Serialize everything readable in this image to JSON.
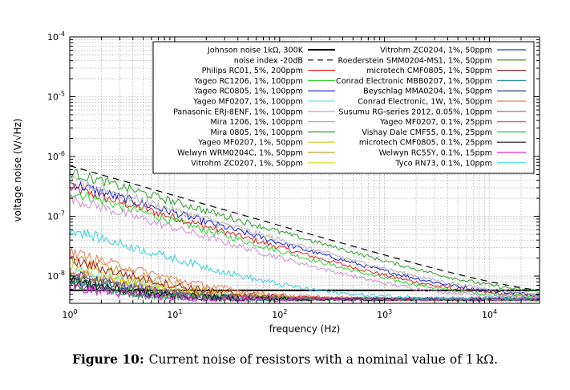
{
  "chart_data": {
    "type": "line",
    "xlabel": "frequency (Hz)",
    "ylabel": "voltage noise (V/√Hz)",
    "xscale": "log",
    "yscale": "log",
    "xlim": [
      1,
      30000
    ],
    "ylim": [
      3.5e-09,
      0.0001
    ],
    "grid": true,
    "legend": "top-right",
    "x_ticks": [
      {
        "value": 1,
        "mant": "10",
        "exp": "0"
      },
      {
        "value": 10,
        "mant": "10",
        "exp": "1"
      },
      {
        "value": 100,
        "mant": "10",
        "exp": "2"
      },
      {
        "value": 1000,
        "mant": "10",
        "exp": "3"
      },
      {
        "value": 10000,
        "mant": "10",
        "exp": "4"
      }
    ],
    "y_ticks": [
      {
        "value": 1e-08,
        "mant": "10",
        "exp": "-8"
      },
      {
        "value": 1e-07,
        "mant": "10",
        "exp": "-7"
      },
      {
        "value": 1e-06,
        "mant": "10",
        "exp": "-6"
      },
      {
        "value": 1e-05,
        "mant": "10",
        "exp": "-5"
      },
      {
        "value": 0.0001,
        "mant": "10",
        "exp": "-4"
      }
    ],
    "series": [
      {
        "name": "Johnson noise 1kΩ, 300K",
        "color": "#000000",
        "style": "bold",
        "y_at_1Hz": 4.07e-09,
        "slope": 0,
        "floor": 4.07e-09
      },
      {
        "name": "noise index -20dB",
        "color": "#000000",
        "style": "dashed",
        "y_at_1Hz": 7e-07,
        "slope": -0.5,
        "floor": 4.07e-09
      },
      {
        "name": "Philips RC01, 5%, 200ppm",
        "color": "#e0201f",
        "style": "solid",
        "y_at_1Hz": 3e-07,
        "slope": -0.5,
        "floor": 4.3e-09
      },
      {
        "name": "Yageo RC1206, 1%, 100ppm",
        "color": "#32d232",
        "style": "solid",
        "y_at_1Hz": 2.6e-07,
        "slope": -0.5,
        "floor": 4.3e-09
      },
      {
        "name": "Yageo RC0805, 1%, 100ppm",
        "color": "#1a1adc",
        "style": "solid",
        "y_at_1Hz": 3.6e-07,
        "slope": -0.5,
        "floor": 4.4e-09
      },
      {
        "name": "Yageo MF0207, 1%, 100ppm",
        "color": "#66e6e6",
        "style": "solid",
        "y_at_1Hz": 1.3e-08,
        "slope": -0.5,
        "floor": 4.1e-09
      },
      {
        "name": "Panasonic ERJ-8ENF, 1%, 100ppm",
        "color": "#d090d0",
        "style": "solid",
        "y_at_1Hz": 2e-07,
        "slope": -0.5,
        "floor": 4.3e-09
      },
      {
        "name": "Mira 1206, 1%, 100ppm",
        "color": "#b0b0b0",
        "style": "solid",
        "y_at_1Hz": 4e-07,
        "slope": -0.5,
        "floor": 4.5e-09
      },
      {
        "name": "Mira 0805, 1%, 100ppm",
        "color": "#2aa02a",
        "style": "solid",
        "y_at_1Hz": 5.5e-07,
        "slope": -0.5,
        "floor": 4.5e-09
      },
      {
        "name": "Yageo MF0207, 1%, 50ppm",
        "color": "#c8c820",
        "style": "solid",
        "y_at_1Hz": 1.5e-08,
        "slope": -0.5,
        "floor": 4.1e-09
      },
      {
        "name": "Welwyn WRM0204C, 1%, 50ppm",
        "color": "#c8a030",
        "style": "solid",
        "y_at_1Hz": 2e-08,
        "slope": -0.5,
        "floor": 4.1e-09
      },
      {
        "name": "Vitrohm ZC0207, 1%, 50ppm",
        "color": "#d8d820",
        "style": "solid",
        "y_at_1Hz": 1.2e-08,
        "slope": -0.5,
        "floor": 4.1e-09
      },
      {
        "name": "Vitrohm ZC0204, 1%, 50ppm",
        "color": "#2a3aa0",
        "style": "solid",
        "y_at_1Hz": 1e-08,
        "slope": -0.5,
        "floor": 4.1e-09
      },
      {
        "name": "Roederstein SMM0204-MS1, 1%, 50ppm",
        "color": "#3a7a1a",
        "style": "solid",
        "y_at_1Hz": 9e-09,
        "slope": -0.5,
        "floor": 4.1e-09
      },
      {
        "name": "microtech CMF0805, 1%, 50ppm",
        "color": "#a02020",
        "style": "solid",
        "y_at_1Hz": 1.8e-08,
        "slope": -0.5,
        "floor": 4.1e-09
      },
      {
        "name": "Conrad Electronic MBB0207, 1%, 50ppm",
        "color": "#2090a0",
        "style": "solid",
        "y_at_1Hz": 8e-09,
        "slope": -0.5,
        "floor": 4.1e-09
      },
      {
        "name": "Beyschlag MMA0204, 1%, 50ppm",
        "color": "#1a2a60",
        "style": "solid",
        "y_at_1Hz": 7e-09,
        "slope": -0.5,
        "floor": 4.1e-09
      },
      {
        "name": "Conrad Electronic, 1W, 1%, 50ppm",
        "color": "#e08060",
        "style": "solid",
        "y_at_1Hz": 2.5e-08,
        "slope": -0.5,
        "floor": 4.1e-09
      },
      {
        "name": "Susumu RG-series 2012, 0.05%, 10ppm",
        "color": "#707070",
        "style": "solid",
        "y_at_1Hz": 6e-09,
        "slope": -0.5,
        "floor": 4.1e-09
      },
      {
        "name": "Yageo MF0207, 0.1%, 25ppm",
        "color": "#e06060",
        "style": "solid",
        "y_at_1Hz": 1.1e-08,
        "slope": -0.5,
        "floor": 4.1e-09
      },
      {
        "name": "Vishay Dale CMF55, 0.1%, 25ppm",
        "color": "#20c040",
        "style": "solid",
        "y_at_1Hz": 6.5e-09,
        "slope": -0.5,
        "floor": 4.1e-09
      },
      {
        "name": "microtech CMF0805, 0.1%, 25ppm",
        "color": "#101010",
        "style": "solid",
        "y_at_1Hz": 7.5e-09,
        "slope": -0.5,
        "floor": 4.1e-09
      },
      {
        "name": "Welwyn RC55Y, 0.1%, 15ppm",
        "color": "#e020e0",
        "style": "solid",
        "y_at_1Hz": 5.5e-09,
        "slope": -0.5,
        "floor": 4.1e-09
      },
      {
        "name": "Tyco RN73, 0.1%, 10ppm",
        "color": "#30d0e0",
        "style": "solid",
        "y_at_1Hz": 6e-08,
        "slope": -0.5,
        "floor": 4.2e-09
      }
    ]
  },
  "caption": {
    "label": "Figure 10:",
    "text": "Current noise of resistors with a nominal value of 1 kΩ."
  }
}
